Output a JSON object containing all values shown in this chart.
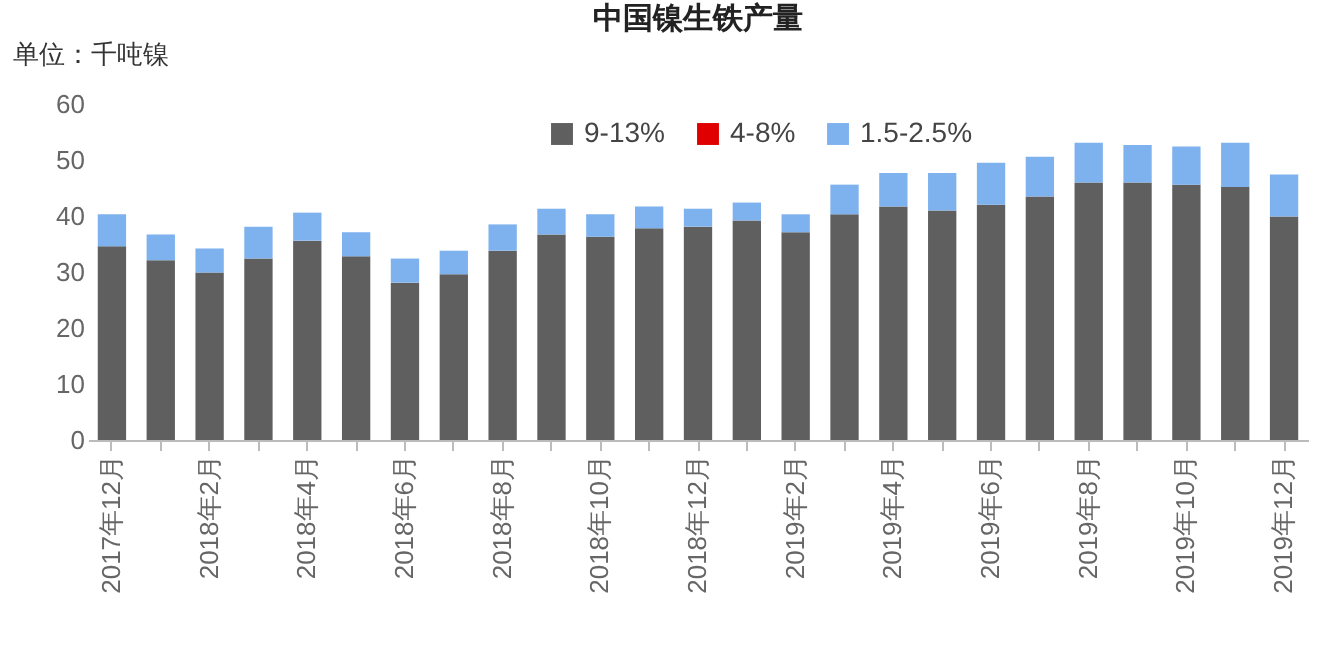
{
  "chart_data": {
    "type": "bar",
    "title": "中国镍生铁产量",
    "ylabel": "单位：千吨镍",
    "categories": [
      "2017年12月",
      null,
      "2018年2月",
      null,
      "2018年4月",
      null,
      "2018年6月",
      null,
      "2018年8月",
      null,
      "2018年10月",
      null,
      "2018年12月",
      null,
      "2019年2月",
      null,
      "2019年4月",
      null,
      "2019年6月",
      null,
      "2019年8月",
      null,
      "2019年10月",
      null,
      "2019年12月"
    ],
    "stacked": true,
    "series": [
      {
        "name": "9-13%",
        "color": "#5f5f5f",
        "values": [
          34.6,
          32.1,
          29.9,
          32.4,
          35.6,
          32.8,
          28.1,
          29.6,
          33.8,
          36.7,
          36.3,
          37.8,
          38.1,
          39.2,
          37.1,
          40.3,
          41.7,
          41.0,
          42.0,
          43.5,
          46.0,
          46.0,
          45.6,
          45.2,
          39.9
        ]
      },
      {
        "name": "4-8%",
        "color": "#e00000",
        "values": [
          null,
          null,
          null,
          null,
          null,
          null,
          null,
          null,
          null,
          null,
          null,
          null,
          null,
          null,
          null,
          null,
          null,
          null,
          null,
          null,
          null,
          null,
          null,
          null,
          null
        ]
      },
      {
        "name": "1.5-2.5%",
        "color": "#7eb2ee",
        "values": [
          5.7,
          4.6,
          4.3,
          5.7,
          5.0,
          4.3,
          4.3,
          4.2,
          4.7,
          4.6,
          4.0,
          3.9,
          3.2,
          3.2,
          3.2,
          5.3,
          6.0,
          6.7,
          7.5,
          7.1,
          7.1,
          6.7,
          6.8,
          7.9,
          7.5
        ]
      }
    ],
    "ylim": [
      0,
      60
    ],
    "yticks": [
      0,
      10,
      20,
      30,
      40,
      50,
      60
    ],
    "grid": false,
    "legend": "top"
  }
}
